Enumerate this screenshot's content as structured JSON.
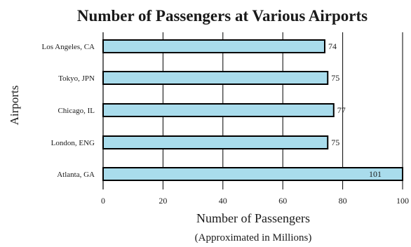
{
  "chart_data": {
    "type": "bar",
    "orientation": "horizontal",
    "title": "Number of Passengers at Various Airports",
    "xlabel": "Number of Passengers",
    "xlabel_sub": "(Approximated in Millions)",
    "ylabel": "Airports",
    "categories": [
      "Los Angeles, CA",
      "Tokyo, JPN",
      "Chicago, IL",
      "London, ENG",
      "Atlanta, GA"
    ],
    "values": [
      74,
      75,
      77,
      75,
      101
    ],
    "data_labels": [
      "74",
      "75",
      "77",
      "75",
      "101"
    ],
    "xlim": [
      0,
      100
    ],
    "xticks": [
      0,
      20,
      40,
      60,
      80,
      100
    ],
    "xtick_labels": [
      "0",
      "20",
      "40",
      "60",
      "80",
      "100"
    ],
    "grid": "vertical",
    "legend": "none",
    "colors": {
      "bar_fill": "#a9dcec",
      "bar_stroke": "#000000",
      "grid": "#000000",
      "text": "#1a1a1a"
    }
  }
}
